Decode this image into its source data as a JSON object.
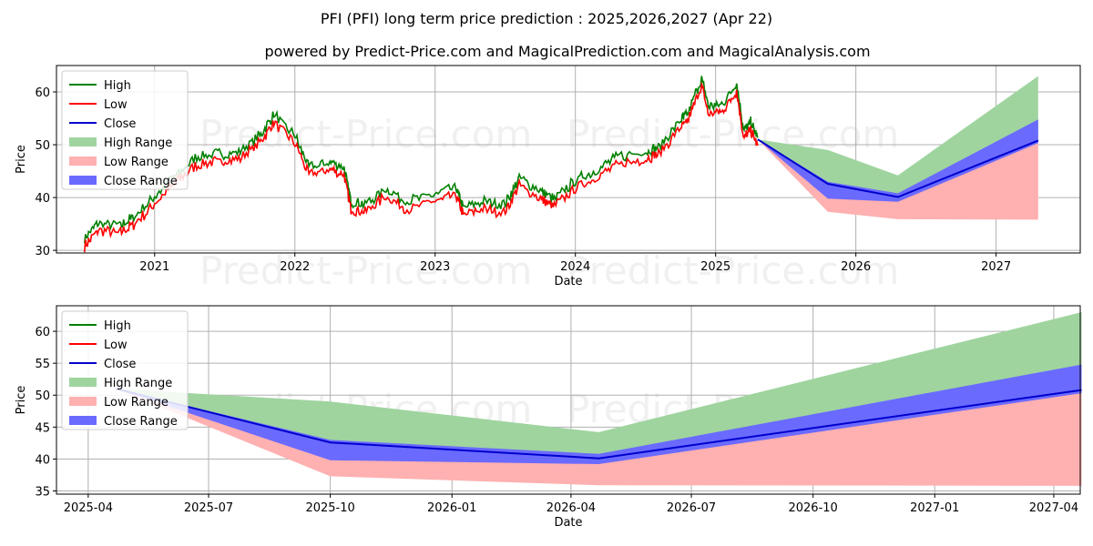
{
  "header": {
    "title": "PFI (PFI) long term price prediction : 2025,2026,2027 (Apr 22)",
    "subtitle": "powered by Predict-Price.com and MagicalPrediction.com and MagicalAnalysis.com"
  },
  "watermark": "Predict-Price.com",
  "colors": {
    "high": "#008000",
    "low": "#ff0000",
    "close": "#0000cd",
    "high_range": "#9fd49f",
    "low_range": "#ffb0b0",
    "close_range": "#6a6aff"
  },
  "legend": {
    "high": "High",
    "low": "Low",
    "close": "Close",
    "high_range": "High Range",
    "low_range": "Low Range",
    "close_range": "Close Range"
  },
  "chart_data": [
    {
      "type": "line",
      "title": "PFI (PFI) long term price prediction : 2025,2026,2027 (Apr 22)",
      "xlabel": "Date",
      "ylabel": "Price",
      "xlim": [
        2020.3,
        2027.6
      ],
      "ylim": [
        29.5,
        65
      ],
      "xticks": [
        {
          "v": 2021,
          "label": "2021"
        },
        {
          "v": 2022,
          "label": "2022"
        },
        {
          "v": 2023,
          "label": "2023"
        },
        {
          "v": 2024,
          "label": "2024"
        },
        {
          "v": 2025,
          "label": "2025"
        },
        {
          "v": 2026,
          "label": "2026"
        },
        {
          "v": 2027,
          "label": "2027"
        }
      ],
      "yticks": [
        30,
        40,
        50,
        60
      ],
      "legend_position": "top-left",
      "history": {
        "x": [
          2020.5,
          2020.6,
          2020.75,
          2020.85,
          2021.0,
          2021.15,
          2021.3,
          2021.45,
          2021.6,
          2021.75,
          2021.85,
          2022.0,
          2022.1,
          2022.25,
          2022.35,
          2022.4,
          2022.5,
          2022.65,
          2022.8,
          2023.0,
          2023.15,
          2023.2,
          2023.35,
          2023.5,
          2023.6,
          2023.75,
          2023.85,
          2024.0,
          2024.15,
          2024.3,
          2024.5,
          2024.6,
          2024.75,
          2024.8,
          2024.9,
          2024.95,
          2025.05,
          2025.15,
          2025.2,
          2025.25,
          2025.3
        ],
        "close": [
          31.5,
          34.5,
          34.0,
          35.5,
          39.5,
          43.5,
          47.0,
          47.5,
          48.0,
          51.0,
          55.0,
          51.0,
          45.0,
          46.0,
          45.0,
          38.5,
          38.0,
          41.0,
          38.5,
          40.0,
          41.0,
          37.5,
          38.5,
          38.0,
          43.0,
          40.5,
          39.0,
          42.5,
          44.5,
          47.0,
          48.0,
          49.0,
          54.0,
          55.0,
          62.0,
          56.5,
          57.0,
          61.0,
          52.0,
          53.5,
          50.5
        ]
      },
      "forecast": {
        "x": [
          2025.3,
          2025.8,
          2026.3,
          2027.3
        ],
        "high": [
          51.0,
          49.0,
          44.2,
          63.0
        ],
        "low": [
          51.0,
          37.3,
          35.9,
          35.8
        ],
        "close": [
          51.0,
          42.6,
          40.1,
          50.8
        ],
        "close_upper": [
          51.0,
          43.0,
          40.8,
          54.8
        ],
        "close_lower": [
          51.0,
          39.8,
          39.2,
          50.3
        ]
      }
    },
    {
      "type": "line",
      "title": "",
      "xlabel": "Date",
      "ylabel": "Price",
      "xlim": [
        -24,
        750
      ],
      "ylim": [
        34.5,
        64.0
      ],
      "xticks": [
        {
          "v": 0,
          "label": "2025-04"
        },
        {
          "v": 91,
          "label": "2025-07"
        },
        {
          "v": 183,
          "label": "2025-10"
        },
        {
          "v": 275,
          "label": "2026-01"
        },
        {
          "v": 365,
          "label": "2026-04"
        },
        {
          "v": 456,
          "label": "2026-07"
        },
        {
          "v": 548,
          "label": "2026-10"
        },
        {
          "v": 640,
          "label": "2027-01"
        },
        {
          "v": 730,
          "label": "2027-04"
        }
      ],
      "yticks": [
        35,
        40,
        45,
        50,
        55,
        60
      ],
      "legend_position": "top-left",
      "forecast": {
        "x": [
          21,
          183,
          386,
          751
        ],
        "high": [
          51.0,
          49.0,
          44.2,
          63.0
        ],
        "low": [
          51.0,
          37.3,
          35.9,
          35.8
        ],
        "close": [
          51.0,
          42.6,
          40.1,
          50.8
        ],
        "close_upper": [
          51.0,
          43.0,
          40.8,
          54.8
        ],
        "close_lower": [
          51.0,
          39.8,
          39.2,
          50.3
        ]
      }
    }
  ]
}
